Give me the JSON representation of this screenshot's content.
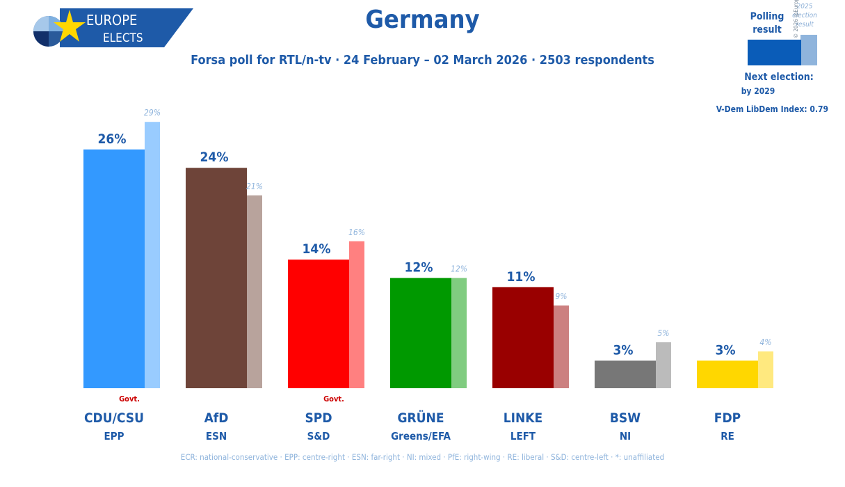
{
  "logo": {
    "line1": "EUROPE",
    "line2": "ELECTS"
  },
  "title": "Germany",
  "subtitle": "Forsa poll for RTL/n-tv · 24 February – 02 March 2026 · 2503 respondents",
  "legend": {
    "polling_label": "Polling result",
    "election_label": "2025 election result",
    "copyright": "© 2026 @EuropeElects"
  },
  "next_election": {
    "label": "Next election:",
    "value": "by 2029"
  },
  "vdem": "V-Dem LibDem Index: 0.79",
  "footnote": "ECR: national-conservative · EPP: centre-right · ESN: far-right · NI: mixed · PfE: right-wing · RE: liberal · S&D: centre-left · *: unaffiliated",
  "chart_data": {
    "type": "bar",
    "categories": [
      "CDU/CSU",
      "AfD",
      "SPD",
      "GRÜNE",
      "LINKE",
      "BSW",
      "FDP"
    ],
    "groups": [
      "EPP",
      "ESN",
      "S&D",
      "Greens/EFA",
      "LEFT",
      "NI",
      "RE"
    ],
    "govt": [
      "Govt.",
      "",
      "Govt.",
      "",
      "",
      "",
      ""
    ],
    "series": [
      {
        "name": "Polling result",
        "values": [
          26,
          24,
          14,
          12,
          11,
          3,
          3
        ]
      },
      {
        "name": "2025 election result",
        "values": [
          29,
          21,
          16,
          12,
          9,
          5,
          4
        ]
      }
    ],
    "poll_labels": [
      "26%",
      "24%",
      "14%",
      "12%",
      "11%",
      "3%",
      "3%"
    ],
    "prev_labels": [
      "29%",
      "21%",
      "16%",
      "12%",
      "9%",
      "5%",
      "4%"
    ],
    "poll_colors": [
      "#3399ff",
      "#6e4439",
      "#ff0000",
      "#009900",
      "#990000",
      "#777777",
      "#ffd700"
    ],
    "prev_colors": [
      "#99ccff",
      "#b8a39c",
      "#ff8080",
      "#80cc80",
      "#cc8080",
      "#bbbbbb",
      "#ffe97f"
    ],
    "label_color": "#1e5aa8",
    "prev_label_color": "#8fb4dc",
    "govt_color": "#cc0000"
  }
}
